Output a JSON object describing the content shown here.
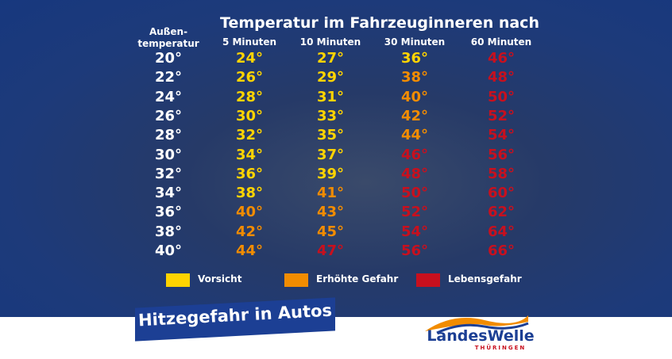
{
  "title": "Temperatur im Fahrzeuginneren nach",
  "table": {
    "header": [
      [
        "Außen-",
        "temperatur"
      ],
      "5 Minuten",
      "10 Minuten",
      "30 Minuten",
      "60 Minuten"
    ],
    "rows": [
      [
        {
          "text": "20°",
          "color": "#ffffff"
        },
        {
          "text": "24°",
          "color": "#ffd400"
        },
        {
          "text": "27°",
          "color": "#ffd400"
        },
        {
          "text": "36°",
          "color": "#ffd400"
        },
        {
          "text": "46°",
          "color": "#c8101e"
        }
      ],
      [
        {
          "text": "22°",
          "color": "#ffffff"
        },
        {
          "text": "26°",
          "color": "#ffd400"
        },
        {
          "text": "29°",
          "color": "#ffd400"
        },
        {
          "text": "38°",
          "color": "#f28c00"
        },
        {
          "text": "48°",
          "color": "#c8101e"
        }
      ],
      [
        {
          "text": "24°",
          "color": "#ffffff"
        },
        {
          "text": "28°",
          "color": "#ffd400"
        },
        {
          "text": "31°",
          "color": "#ffd400"
        },
        {
          "text": "40°",
          "color": "#f28c00"
        },
        {
          "text": "50°",
          "color": "#c8101e"
        }
      ],
      [
        {
          "text": "26°",
          "color": "#ffffff"
        },
        {
          "text": "30°",
          "color": "#ffd400"
        },
        {
          "text": "33°",
          "color": "#ffd400"
        },
        {
          "text": "42°",
          "color": "#f28c00"
        },
        {
          "text": "52°",
          "color": "#c8101e"
        }
      ],
      [
        {
          "text": "28°",
          "color": "#ffffff"
        },
        {
          "text": "32°",
          "color": "#ffd400"
        },
        {
          "text": "35°",
          "color": "#ffd400"
        },
        {
          "text": "44°",
          "color": "#f28c00"
        },
        {
          "text": "54°",
          "color": "#c8101e"
        }
      ],
      [
        {
          "text": "30°",
          "color": "#ffffff"
        },
        {
          "text": "34°",
          "color": "#ffd400"
        },
        {
          "text": "37°",
          "color": "#ffd400"
        },
        {
          "text": "46°",
          "color": "#c8101e"
        },
        {
          "text": "56°",
          "color": "#c8101e"
        }
      ],
      [
        {
          "text": "32°",
          "color": "#ffffff"
        },
        {
          "text": "36°",
          "color": "#ffd400"
        },
        {
          "text": "39°",
          "color": "#ffd400"
        },
        {
          "text": "48°",
          "color": "#c8101e"
        },
        {
          "text": "58°",
          "color": "#c8101e"
        }
      ],
      [
        {
          "text": "34°",
          "color": "#ffffff"
        },
        {
          "text": "38°",
          "color": "#ffd400"
        },
        {
          "text": "41°",
          "color": "#f28c00"
        },
        {
          "text": "50°",
          "color": "#c8101e"
        },
        {
          "text": "60°",
          "color": "#c8101e"
        }
      ],
      [
        {
          "text": "36°",
          "color": "#ffffff"
        },
        {
          "text": "40°",
          "color": "#f28c00"
        },
        {
          "text": "43°",
          "color": "#f28c00"
        },
        {
          "text": "52°",
          "color": "#c8101e"
        },
        {
          "text": "62°",
          "color": "#c8101e"
        }
      ],
      [
        {
          "text": "38°",
          "color": "#ffffff"
        },
        {
          "text": "42°",
          "color": "#f28c00"
        },
        {
          "text": "45°",
          "color": "#f28c00"
        },
        {
          "text": "54°",
          "color": "#c8101e"
        },
        {
          "text": "64°",
          "color": "#c8101e"
        }
      ],
      [
        {
          "text": "40°",
          "color": "#ffffff"
        },
        {
          "text": "44°",
          "color": "#f28c00"
        },
        {
          "text": "47°",
          "color": "#c8101e"
        },
        {
          "text": "56°",
          "color": "#c8101e"
        },
        {
          "text": "66°",
          "color": "#c8101e"
        }
      ]
    ]
  },
  "legend": [
    {
      "label": "Vorsicht",
      "color": "#ffd400"
    },
    {
      "label": "Erhöhte Gefahr",
      "color": "#f28c00"
    },
    {
      "label": "Lebensgefahr",
      "color": "#c8101e"
    }
  ],
  "banner": "Hitzegefahr in Autos",
  "logo": {
    "name": "LandesWelle",
    "region": "THÜRINGEN"
  }
}
